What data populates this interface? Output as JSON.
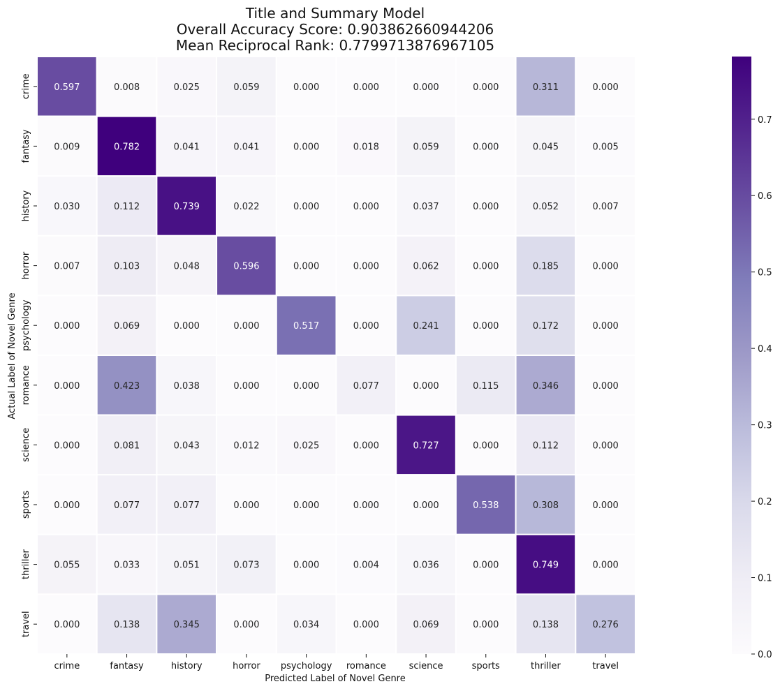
{
  "chart_data": {
    "type": "heatmap",
    "title_lines": [
      "Title and Summary Model",
      "Overall Accuracy Score: 0.903862660944206",
      "Mean Reciprocal Rank: 0.7799713876967105"
    ],
    "xlabel": "Predicted Label of Novel Genre",
    "ylabel": "Actual Label of Novel Genre",
    "x_categories": [
      "crime",
      "fantasy",
      "history",
      "horror",
      "psychology",
      "romance",
      "science",
      "sports",
      "thriller",
      "travel"
    ],
    "y_categories": [
      "crime",
      "fantasy",
      "history",
      "horror",
      "psychology",
      "romance",
      "science",
      "sports",
      "thriller",
      "travel"
    ],
    "values": [
      [
        0.597,
        0.008,
        0.025,
        0.059,
        0.0,
        0.0,
        0.0,
        0.0,
        0.311,
        0.0
      ],
      [
        0.009,
        0.782,
        0.041,
        0.041,
        0.0,
        0.018,
        0.059,
        0.0,
        0.045,
        0.005
      ],
      [
        0.03,
        0.112,
        0.739,
        0.022,
        0.0,
        0.0,
        0.037,
        0.0,
        0.052,
        0.007
      ],
      [
        0.007,
        0.103,
        0.048,
        0.596,
        0.0,
        0.0,
        0.062,
        0.0,
        0.185,
        0.0
      ],
      [
        0.0,
        0.069,
        0.0,
        0.0,
        0.517,
        0.0,
        0.241,
        0.0,
        0.172,
        0.0
      ],
      [
        0.0,
        0.423,
        0.038,
        0.0,
        0.0,
        0.077,
        0.0,
        0.115,
        0.346,
        0.0
      ],
      [
        0.0,
        0.081,
        0.043,
        0.012,
        0.025,
        0.0,
        0.727,
        0.0,
        0.112,
        0.0
      ],
      [
        0.0,
        0.077,
        0.077,
        0.0,
        0.0,
        0.0,
        0.0,
        0.538,
        0.308,
        0.0
      ],
      [
        0.055,
        0.033,
        0.051,
        0.073,
        0.0,
        0.004,
        0.036,
        0.0,
        0.749,
        0.0
      ],
      [
        0.0,
        0.138,
        0.345,
        0.0,
        0.034,
        0.0,
        0.069,
        0.0,
        0.138,
        0.276
      ]
    ],
    "value_format": "0.000",
    "colormap": "Purples",
    "color_range": [
      0,
      0.782
    ],
    "colorbar_ticks": [
      "0.0",
      "0.1",
      "0.2",
      "0.3",
      "0.4",
      "0.5",
      "0.6",
      "0.7"
    ],
    "cell_border_color": "#ffffff",
    "colors": {
      "low": "#fcfbfd",
      "high": "#3f007d",
      "text_dark": "#262626",
      "text_light": "#ffffff"
    }
  }
}
